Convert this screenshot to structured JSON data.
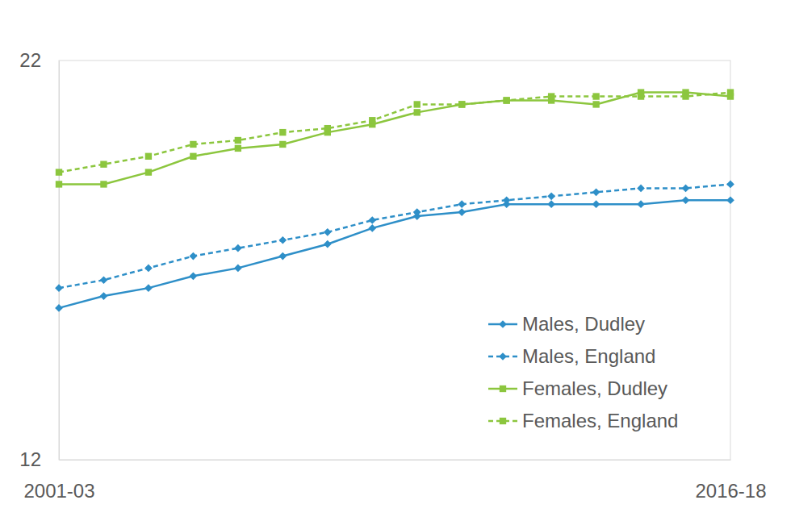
{
  "chart_data": {
    "type": "line",
    "categories": [
      "2001-03",
      null,
      null,
      null,
      null,
      null,
      null,
      null,
      null,
      null,
      null,
      null,
      null,
      null,
      null,
      "2016-18"
    ],
    "ylim": [
      12,
      22
    ],
    "yticks": [
      12,
      22
    ],
    "grid": false,
    "legend": "lower right",
    "series": [
      {
        "name": "Males, Dudley",
        "color": "#2e8fc8",
        "marker": "diamond",
        "line_style": "solid",
        "values": [
          15.8,
          16.1,
          16.3,
          16.6,
          16.8,
          17.1,
          17.4,
          17.8,
          18.1,
          18.2,
          18.4,
          18.4,
          18.4,
          18.4,
          18.5,
          18.5
        ]
      },
      {
        "name": "Males, England",
        "color": "#2e8fc8",
        "marker": "diamond",
        "line_style": "dashed",
        "values": [
          16.3,
          16.5,
          16.8,
          17.1,
          17.3,
          17.5,
          17.7,
          18.0,
          18.2,
          18.4,
          18.5,
          18.6,
          18.7,
          18.8,
          18.8,
          18.9
        ]
      },
      {
        "name": "Females, Dudley",
        "color": "#8cc63e",
        "marker": "square",
        "line_style": "solid",
        "values": [
          18.9,
          18.9,
          19.2,
          19.6,
          19.8,
          19.9,
          20.2,
          20.4,
          20.7,
          20.9,
          21.0,
          21.0,
          20.9,
          21.2,
          21.2,
          21.1
        ]
      },
      {
        "name": "Females, England",
        "color": "#8cc63e",
        "marker": "square",
        "line_style": "dashed",
        "values": [
          19.2,
          19.4,
          19.6,
          19.9,
          20.0,
          20.2,
          20.3,
          20.5,
          20.9,
          20.9,
          21.0,
          21.1,
          21.1,
          21.1,
          21.1,
          21.2
        ]
      }
    ]
  }
}
